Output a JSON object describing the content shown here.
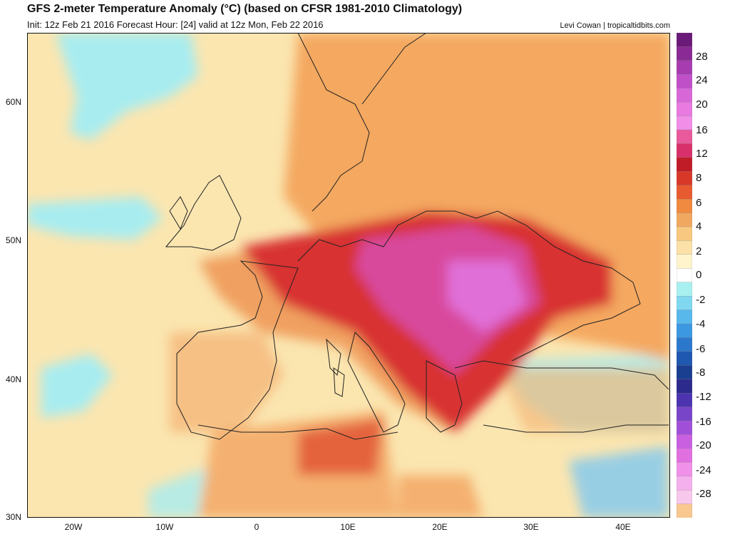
{
  "header": {
    "title": "GFS 2-meter Temperature Anomaly (°C) (based on CFSR 1981-2010 Climatology)",
    "subtitle": "Init: 12z Feb 21 2016   Forecast Hour: [24]   valid at 12z Mon, Feb 22 2016",
    "credit": "Levi Cowan | tropicaltidbits.com"
  },
  "axes": {
    "lat_labels": [
      "60N",
      "50N",
      "40N",
      "30N"
    ],
    "lon_labels": [
      "20W",
      "10W",
      "0",
      "10E",
      "20E",
      "30E",
      "40E"
    ]
  },
  "colorbar": {
    "labels": [
      "28",
      "24",
      "20",
      "16",
      "12",
      "8",
      "6",
      "4",
      "2",
      "0",
      "-2",
      "-4",
      "-6",
      "-8",
      "-12",
      "-16",
      "-20",
      "-24",
      "-28"
    ],
    "colors": [
      "#6a1a78",
      "#8a2a94",
      "#a63cb0",
      "#c050c8",
      "#d868d8",
      "#e87ae0",
      "#f08ee8",
      "#e85a9c",
      "#d8306a",
      "#c01c28",
      "#d83828",
      "#e85a30",
      "#f08a40",
      "#f0a860",
      "#f8c880",
      "#fbe0a8",
      "#fff4cc",
      "#ffffff",
      "#a8f0f0",
      "#80d8f0",
      "#58b8ec",
      "#3c98e0",
      "#2c78cc",
      "#1e58b0",
      "#1a3e90",
      "#2c2a8c",
      "#4c34b0",
      "#7844c8",
      "#a050d8",
      "#c860e0",
      "#e070e0",
      "#f090e8",
      "#f4b0ec",
      "#f8c8ec",
      "#f8c890"
    ]
  },
  "map_colors": {
    "sea_neutral": "#fbe6b0",
    "cold": "#a8ecf0",
    "warm": "#f4a860",
    "hot": "#d83030",
    "very_hot": "#d84a9c",
    "extreme": "#e070d8"
  }
}
